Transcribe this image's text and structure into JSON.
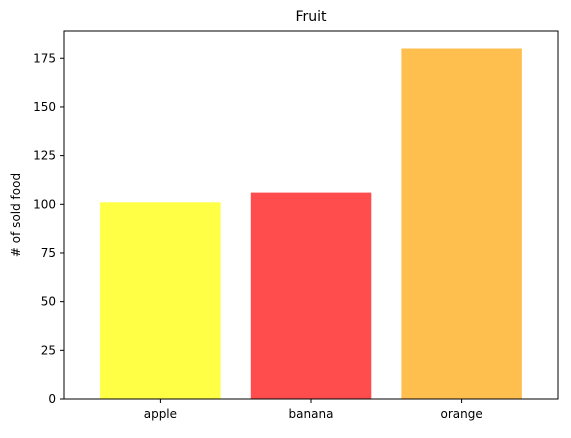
{
  "chart_data": {
    "type": "bar",
    "title": "Fruit",
    "xlabel": "",
    "ylabel": "# of sold food",
    "categories": [
      "apple",
      "banana",
      "orange"
    ],
    "values": [
      101,
      106,
      180
    ],
    "colors": [
      "#ffff45",
      "#ff4d4d",
      "#ffbf4f"
    ],
    "ylim": [
      0,
      189
    ],
    "yticks": [
      0,
      25,
      50,
      75,
      100,
      125,
      150,
      175
    ],
    "grid": false
  }
}
